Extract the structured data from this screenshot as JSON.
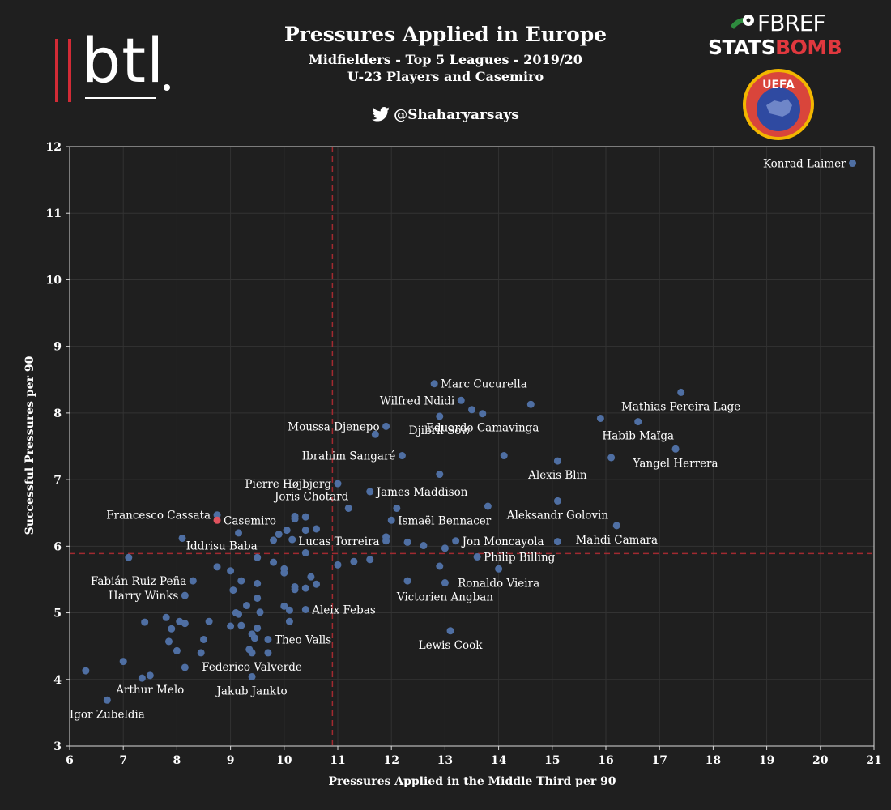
{
  "header": {
    "title": "Pressures Applied in Europe",
    "subtitle1": "Midfielders - Top 5 Leagues - 2019/20",
    "subtitle2": "U-23 Players and Casemiro",
    "handle": "@Shaharyarsays",
    "logo_btl": "btl",
    "logo_fbref": "FBREF",
    "logo_statsbomb_a": "STATS",
    "logo_statsbomb_b": "BOMB",
    "logo_uefa": "UEFA"
  },
  "colors": {
    "background": "#1f1f1f",
    "point": "#4f6fa3",
    "highlight": "#e0535e",
    "reference_line": "#a12a30",
    "accent": "#d22b36"
  },
  "chart_data": {
    "type": "scatter",
    "xlabel": "Pressures Applied in the Middle Third per 90",
    "ylabel": "Successful Pressures per 90",
    "xlim": [
      6,
      21
    ],
    "ylim": [
      3,
      12
    ],
    "xticks": [
      6,
      7,
      8,
      9,
      10,
      11,
      12,
      13,
      14,
      15,
      16,
      17,
      18,
      19,
      20,
      21
    ],
    "yticks": [
      3,
      4,
      5,
      6,
      7,
      8,
      9,
      10,
      11,
      12
    ],
    "grid": true,
    "reference_lines": {
      "x": 10.9,
      "y": 5.89
    },
    "labeled_points": [
      {
        "label": "Konrad Laimer",
        "x": 20.6,
        "y": 11.75,
        "anchor": "end"
      },
      {
        "label": "Marc Cucurella",
        "x": 12.8,
        "y": 8.44,
        "anchor": "start"
      },
      {
        "label": "Mathias Pereira Lage",
        "x": 17.4,
        "y": 8.31,
        "anchor": "below"
      },
      {
        "label": "Wilfred Ndidi",
        "x": 13.3,
        "y": 8.19,
        "anchor": "end"
      },
      {
        "label": "Moussa Djenepo",
        "x": 11.9,
        "y": 7.8,
        "anchor": "end"
      },
      {
        "label": "Djibril Sow",
        "x": 12.9,
        "y": 7.95,
        "anchor": "below"
      },
      {
        "label": "Eduardo Camavinga",
        "x": 13.7,
        "y": 7.99,
        "anchor": "below"
      },
      {
        "label": "Habib Maïga",
        "x": 16.6,
        "y": 7.87,
        "anchor": "below"
      },
      {
        "label": "Ibrahim Sangaré",
        "x": 12.2,
        "y": 7.36,
        "anchor": "end"
      },
      {
        "label": "Yangel Herrera",
        "x": 17.3,
        "y": 7.46,
        "anchor": "below"
      },
      {
        "label": "Alexis Blin",
        "x": 15.1,
        "y": 7.28,
        "anchor": "below"
      },
      {
        "label": "Pierre Højbjerg",
        "x": 11.0,
        "y": 6.94,
        "anchor": "end"
      },
      {
        "label": "James Maddison",
        "x": 11.6,
        "y": 6.82,
        "anchor": "start"
      },
      {
        "label": "Joris Chotard",
        "x": 11.2,
        "y": 6.57,
        "anchor": "above-end"
      },
      {
        "label": "Aleksandr Golovin",
        "x": 15.1,
        "y": 6.68,
        "anchor": "below"
      },
      {
        "label": "Francesco Cassata",
        "x": 8.75,
        "y": 6.47,
        "anchor": "end"
      },
      {
        "label": "Casemiro",
        "x": 8.75,
        "y": 6.39,
        "anchor": "start",
        "highlight": true
      },
      {
        "label": "Ismaël Bennacer",
        "x": 12.0,
        "y": 6.39,
        "anchor": "start"
      },
      {
        "label": "Mahdi Camara",
        "x": 16.2,
        "y": 6.31,
        "anchor": "below"
      },
      {
        "label": "Lucas Torreira",
        "x": 11.9,
        "y": 6.08,
        "anchor": "end"
      },
      {
        "label": "Jon Moncayola",
        "x": 13.2,
        "y": 6.08,
        "anchor": "start"
      },
      {
        "label": "Iddrisu Baba",
        "x": 9.5,
        "y": 5.83,
        "anchor": "above-end"
      },
      {
        "label": "Philip Billing",
        "x": 13.6,
        "y": 5.84,
        "anchor": "start"
      },
      {
        "label": "Fabián Ruiz Peña",
        "x": 8.3,
        "y": 5.48,
        "anchor": "end"
      },
      {
        "label": "Ronaldo Vieira",
        "x": 14.0,
        "y": 5.66,
        "anchor": "below"
      },
      {
        "label": "Harry Winks",
        "x": 8.15,
        "y": 5.26,
        "anchor": "end"
      },
      {
        "label": "Victorien Angban",
        "x": 13.0,
        "y": 5.45,
        "anchor": "below"
      },
      {
        "label": "Aleix Febas",
        "x": 10.4,
        "y": 5.05,
        "anchor": "start"
      },
      {
        "label": "Lewis Cook",
        "x": 13.1,
        "y": 4.73,
        "anchor": "below"
      },
      {
        "label": "Theo Valls",
        "x": 9.7,
        "y": 4.6,
        "anchor": "start"
      },
      {
        "label": "Federico Valverde",
        "x": 9.4,
        "y": 4.4,
        "anchor": "below"
      },
      {
        "label": "Arthur Melo",
        "x": 7.5,
        "y": 4.06,
        "anchor": "below"
      },
      {
        "label": "Jakub Jankto",
        "x": 9.4,
        "y": 4.04,
        "anchor": "below"
      },
      {
        "label": "Igor Zubeldia",
        "x": 6.7,
        "y": 3.69,
        "anchor": "below"
      }
    ],
    "points": [
      [
        6.3,
        4.13
      ],
      [
        7.0,
        4.27
      ],
      [
        7.35,
        4.02
      ],
      [
        7.4,
        4.86
      ],
      [
        7.8,
        4.93
      ],
      [
        7.85,
        4.57
      ],
      [
        7.9,
        4.76
      ],
      [
        8.0,
        4.43
      ],
      [
        8.05,
        4.87
      ],
      [
        8.15,
        4.84
      ],
      [
        8.15,
        4.18
      ],
      [
        8.45,
        4.4
      ],
      [
        8.5,
        4.6
      ],
      [
        8.6,
        4.87
      ],
      [
        8.75,
        5.69
      ],
      [
        9.0,
        4.8
      ],
      [
        9.0,
        5.63
      ],
      [
        9.05,
        5.34
      ],
      [
        9.1,
        5.0
      ],
      [
        9.15,
        4.98
      ],
      [
        9.2,
        4.81
      ],
      [
        9.2,
        5.48
      ],
      [
        9.3,
        5.11
      ],
      [
        9.35,
        4.45
      ],
      [
        9.4,
        4.68
      ],
      [
        9.45,
        4.62
      ],
      [
        9.5,
        5.44
      ],
      [
        9.5,
        5.22
      ],
      [
        9.5,
        4.77
      ],
      [
        9.55,
        5.01
      ],
      [
        9.7,
        4.4
      ],
      [
        9.8,
        5.76
      ],
      [
        9.9,
        6.18
      ],
      [
        10.0,
        5.1
      ],
      [
        10.0,
        5.6
      ],
      [
        10.0,
        5.66
      ],
      [
        10.05,
        6.24
      ],
      [
        10.1,
        5.04
      ],
      [
        10.1,
        4.87
      ],
      [
        10.15,
        6.1
      ],
      [
        10.2,
        5.35
      ],
      [
        10.2,
        5.39
      ],
      [
        10.2,
        6.41
      ],
      [
        10.4,
        5.9
      ],
      [
        10.4,
        5.37
      ],
      [
        10.5,
        5.54
      ],
      [
        10.6,
        5.43
      ],
      [
        10.4,
        6.44
      ],
      [
        11.0,
        5.72
      ],
      [
        11.3,
        5.77
      ],
      [
        11.6,
        5.8
      ],
      [
        11.9,
        6.14
      ],
      [
        12.3,
        5.48
      ],
      [
        12.3,
        6.06
      ],
      [
        12.6,
        6.01
      ],
      [
        12.9,
        5.7
      ],
      [
        13.5,
        8.05
      ],
      [
        14.1,
        7.36
      ],
      [
        14.6,
        8.13
      ],
      [
        15.9,
        7.92
      ],
      [
        16.1,
        7.33
      ],
      [
        9.15,
        6.2
      ],
      [
        8.1,
        6.12
      ],
      [
        7.1,
        5.83
      ],
      [
        9.8,
        6.09
      ],
      [
        10.2,
        6.45
      ],
      [
        10.4,
        6.24
      ],
      [
        10.6,
        6.26
      ],
      [
        12.1,
        6.57
      ],
      [
        12.9,
        7.08
      ],
      [
        13.8,
        6.6
      ],
      [
        11.7,
        7.68
      ],
      [
        15.1,
        6.07
      ],
      [
        13.0,
        5.97
      ]
    ]
  }
}
